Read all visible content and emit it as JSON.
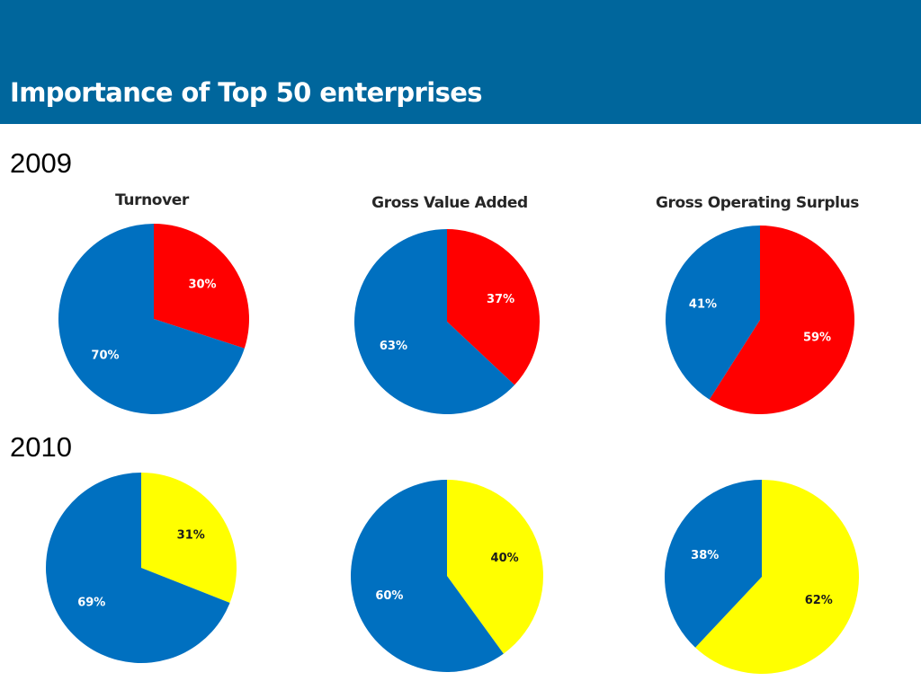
{
  "slide": {
    "title": "Importance of Top 50 enterprises",
    "years": [
      "2009",
      "2010"
    ]
  },
  "colors": {
    "banner": "#00669c",
    "top50": "#0070c0",
    "rest_2009": "#ff0000",
    "rest_2010": "#ffff00"
  },
  "chart_data": [
    {
      "type": "pie",
      "year": "2009",
      "title": "Turnover",
      "values": [
        30,
        70
      ],
      "labels": [
        "30%",
        "70%"
      ],
      "colors": [
        "#ff0000",
        "#0070c0"
      ]
    },
    {
      "type": "pie",
      "year": "2009",
      "title": "Gross Value Added",
      "values": [
        37,
        63
      ],
      "labels": [
        "37%",
        "63%"
      ],
      "colors": [
        "#ff0000",
        "#0070c0"
      ]
    },
    {
      "type": "pie",
      "year": "2009",
      "title": "Gross Operating Surplus",
      "values": [
        59,
        41
      ],
      "labels": [
        "59%",
        "41%"
      ],
      "colors": [
        "#ff0000",
        "#0070c0"
      ]
    },
    {
      "type": "pie",
      "year": "2010",
      "title": "",
      "values": [
        31,
        69
      ],
      "labels": [
        "31%",
        "69%"
      ],
      "colors": [
        "#ffff00",
        "#0070c0"
      ]
    },
    {
      "type": "pie",
      "year": "2010",
      "title": "",
      "values": [
        40,
        60
      ],
      "labels": [
        "40%",
        "60%"
      ],
      "colors": [
        "#ffff00",
        "#0070c0"
      ]
    },
    {
      "type": "pie",
      "year": "2010",
      "title": "",
      "values": [
        62,
        38
      ],
      "labels": [
        "62%",
        "38%"
      ],
      "colors": [
        "#ffff00",
        "#0070c0"
      ]
    }
  ]
}
